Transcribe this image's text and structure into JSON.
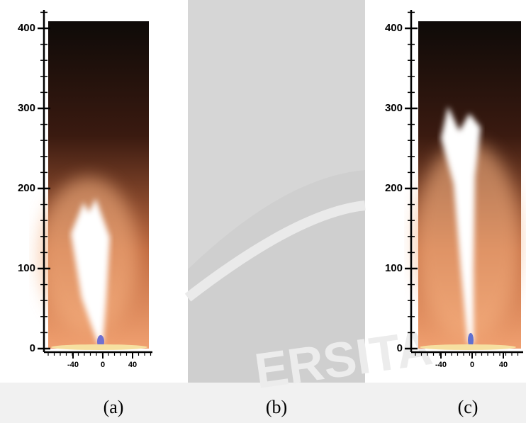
{
  "panels": [
    {
      "caption": "(a)",
      "yticks": [
        0,
        100,
        200,
        300,
        400
      ],
      "xticks": [
        -40,
        0,
        40
      ]
    },
    {
      "caption": "(b)"
    },
    {
      "caption": "(c)",
      "yticks": [
        0,
        100,
        200,
        300,
        400
      ],
      "xticks": [
        -40,
        0,
        40
      ]
    }
  ],
  "watermark": "ERSITA"
}
